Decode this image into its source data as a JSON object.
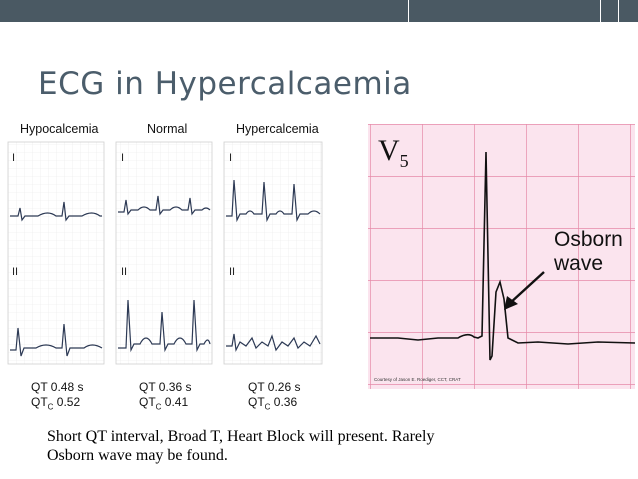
{
  "slide": {
    "title": "ECG in Hypercalcaemia",
    "caption_line1": "Short QT interval, Broad T, Heart Block will present. Rarely",
    "caption_line2": "Osborn wave may be found."
  },
  "ecg_columns": [
    {
      "heading": "Hypocalcemia",
      "lead1": "I",
      "lead2": "II",
      "qt": "QT  0.48 s",
      "qtc_prefix": "QT",
      "qtc_sub": "C",
      "qtc_value": " 0.52"
    },
    {
      "heading": "Normal",
      "lead1": "I",
      "lead2": "II",
      "qt": "QT  0.36 s",
      "qtc_prefix": "QT",
      "qtc_sub": "C",
      "qtc_value": " 0.41"
    },
    {
      "heading": "Hypercalcemia",
      "lead1": "I",
      "lead2": "II",
      "qt": "QT  0.26 s",
      "qtc_prefix": "QT",
      "qtc_sub": "C",
      "qtc_value": " 0.36"
    }
  ],
  "v5_panel": {
    "lead_prefix": "V",
    "lead_sub": "5",
    "annotation_line1": "Osborn",
    "annotation_line2": "wave",
    "courtesy": "Courtesy of Jason E. Roediger, CCT, CRAT"
  },
  "colors": {
    "top_bar": "#4a5963",
    "title": "#4b5d6b",
    "ecg_grid": "#e68aa8",
    "ecg_paper": "#fbe4ee",
    "trace": "#2d3a55"
  }
}
